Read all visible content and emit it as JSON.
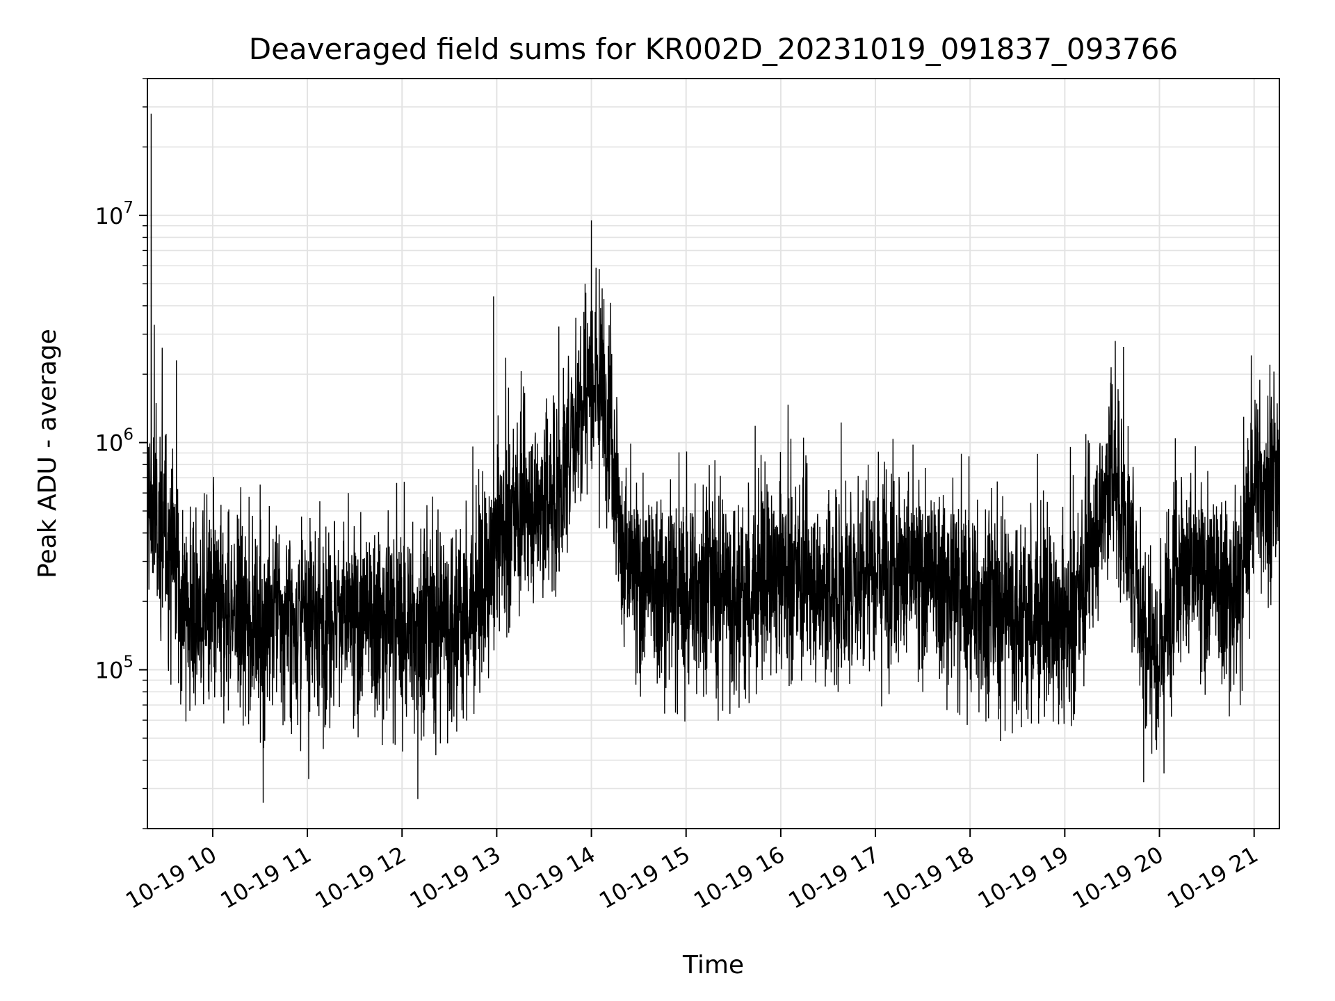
{
  "chart_data": {
    "type": "line",
    "title": "Deaveraged field sums for KR002D_20231019_091837_093766",
    "xlabel": "Time",
    "ylabel": "Peak ADU - average",
    "yscale": "log",
    "ylim": [
      20000,
      40000000
    ],
    "xlim": [
      "2023-10-19 09:18:37",
      "2023-10-19 21:16:00"
    ],
    "x_ticks": [
      "10-19 10",
      "10-19 11",
      "10-19 12",
      "10-19 13",
      "10-19 14",
      "10-19 15",
      "10-19 16",
      "10-19 17",
      "10-19 18",
      "10-19 19",
      "10-19 20",
      "10-19 21"
    ],
    "y_ticks": [
      {
        "base": "10",
        "exp": "5",
        "value": 100000
      },
      {
        "base": "10",
        "exp": "6",
        "value": 1000000
      },
      {
        "base": "10",
        "exp": "7",
        "value": 10000000
      }
    ],
    "grid": true,
    "line_color": "#000000",
    "series": [
      {
        "x": [
          "2023-10-19 09:18",
          "2023-10-19 09:20",
          "2023-10-19 09:25",
          "2023-10-19 09:30",
          "2023-10-19 09:35",
          "2023-10-19 09:40",
          "2023-10-19 09:45",
          "2023-10-19 09:50",
          "2023-10-19 10:00",
          "2023-10-19 10:15",
          "2023-10-19 10:30",
          "2023-10-19 10:45",
          "2023-10-19 11:00",
          "2023-10-19 11:15",
          "2023-10-19 11:30",
          "2023-10-19 11:45",
          "2023-10-19 12:00",
          "2023-10-19 12:15",
          "2023-10-19 12:30",
          "2023-10-19 12:45",
          "2023-10-19 12:55",
          "2023-10-19 13:00",
          "2023-10-19 13:10",
          "2023-10-19 13:20",
          "2023-10-19 13:30",
          "2023-10-19 13:40",
          "2023-10-19 13:50",
          "2023-10-19 14:00",
          "2023-10-19 14:10",
          "2023-10-19 14:15",
          "2023-10-19 14:20",
          "2023-10-19 14:30",
          "2023-10-19 14:45",
          "2023-10-19 15:00",
          "2023-10-19 15:10",
          "2023-10-19 15:20",
          "2023-10-19 15:40",
          "2023-10-19 16:00",
          "2023-10-19 16:10",
          "2023-10-19 16:30",
          "2023-10-19 16:45",
          "2023-10-19 16:55",
          "2023-10-19 17:10",
          "2023-10-19 17:30",
          "2023-10-19 18:00",
          "2023-10-19 18:30",
          "2023-10-19 18:50",
          "2023-10-19 19:00",
          "2023-10-19 19:10",
          "2023-10-19 19:20",
          "2023-10-19 19:30",
          "2023-10-19 19:40",
          "2023-10-19 19:50",
          "2023-10-19 20:00",
          "2023-10-19 20:10",
          "2023-10-19 20:30",
          "2023-10-19 20:50",
          "2023-10-19 21:00",
          "2023-10-19 21:10",
          "2023-10-19 21:16"
        ],
        "y": [
          600000,
          500000,
          450000,
          380000,
          350000,
          200000,
          180000,
          170000,
          180000,
          175000,
          170000,
          165000,
          160000,
          170000,
          165000,
          160000,
          155000,
          160000,
          165000,
          180000,
          250000,
          400000,
          450000,
          500000,
          550000,
          600000,
          1300000,
          2200000,
          1600000,
          800000,
          300000,
          250000,
          220000,
          210000,
          250000,
          230000,
          210000,
          280000,
          250000,
          220000,
          230000,
          320000,
          300000,
          260000,
          200000,
          180000,
          160000,
          160000,
          200000,
          400000,
          800000,
          400000,
          160000,
          120000,
          300000,
          250000,
          200000,
          700000,
          600000,
          650000
        ]
      }
    ],
    "spikes": [
      {
        "x": "2023-10-19 09:21",
        "y": 28000000
      },
      {
        "x": "2023-10-19 09:23",
        "y": 3300000
      },
      {
        "x": "2023-10-19 09:37",
        "y": 2300000
      },
      {
        "x": "2023-10-19 12:58",
        "y": 4400000
      },
      {
        "x": "2023-10-19 13:56",
        "y": 5000000
      },
      {
        "x": "2023-10-19 14:00",
        "y": 9500000
      },
      {
        "x": "2023-10-19 14:05",
        "y": 5800000
      },
      {
        "x": "2023-10-19 19:32",
        "y": 2800000
      },
      {
        "x": "2023-10-19 21:10",
        "y": 2200000
      },
      {
        "x": "2023-10-19 10:32",
        "y": 26000
      },
      {
        "x": "2023-10-19 12:10",
        "y": 27000
      },
      {
        "x": "2023-10-19 19:50",
        "y": 32000
      }
    ]
  }
}
